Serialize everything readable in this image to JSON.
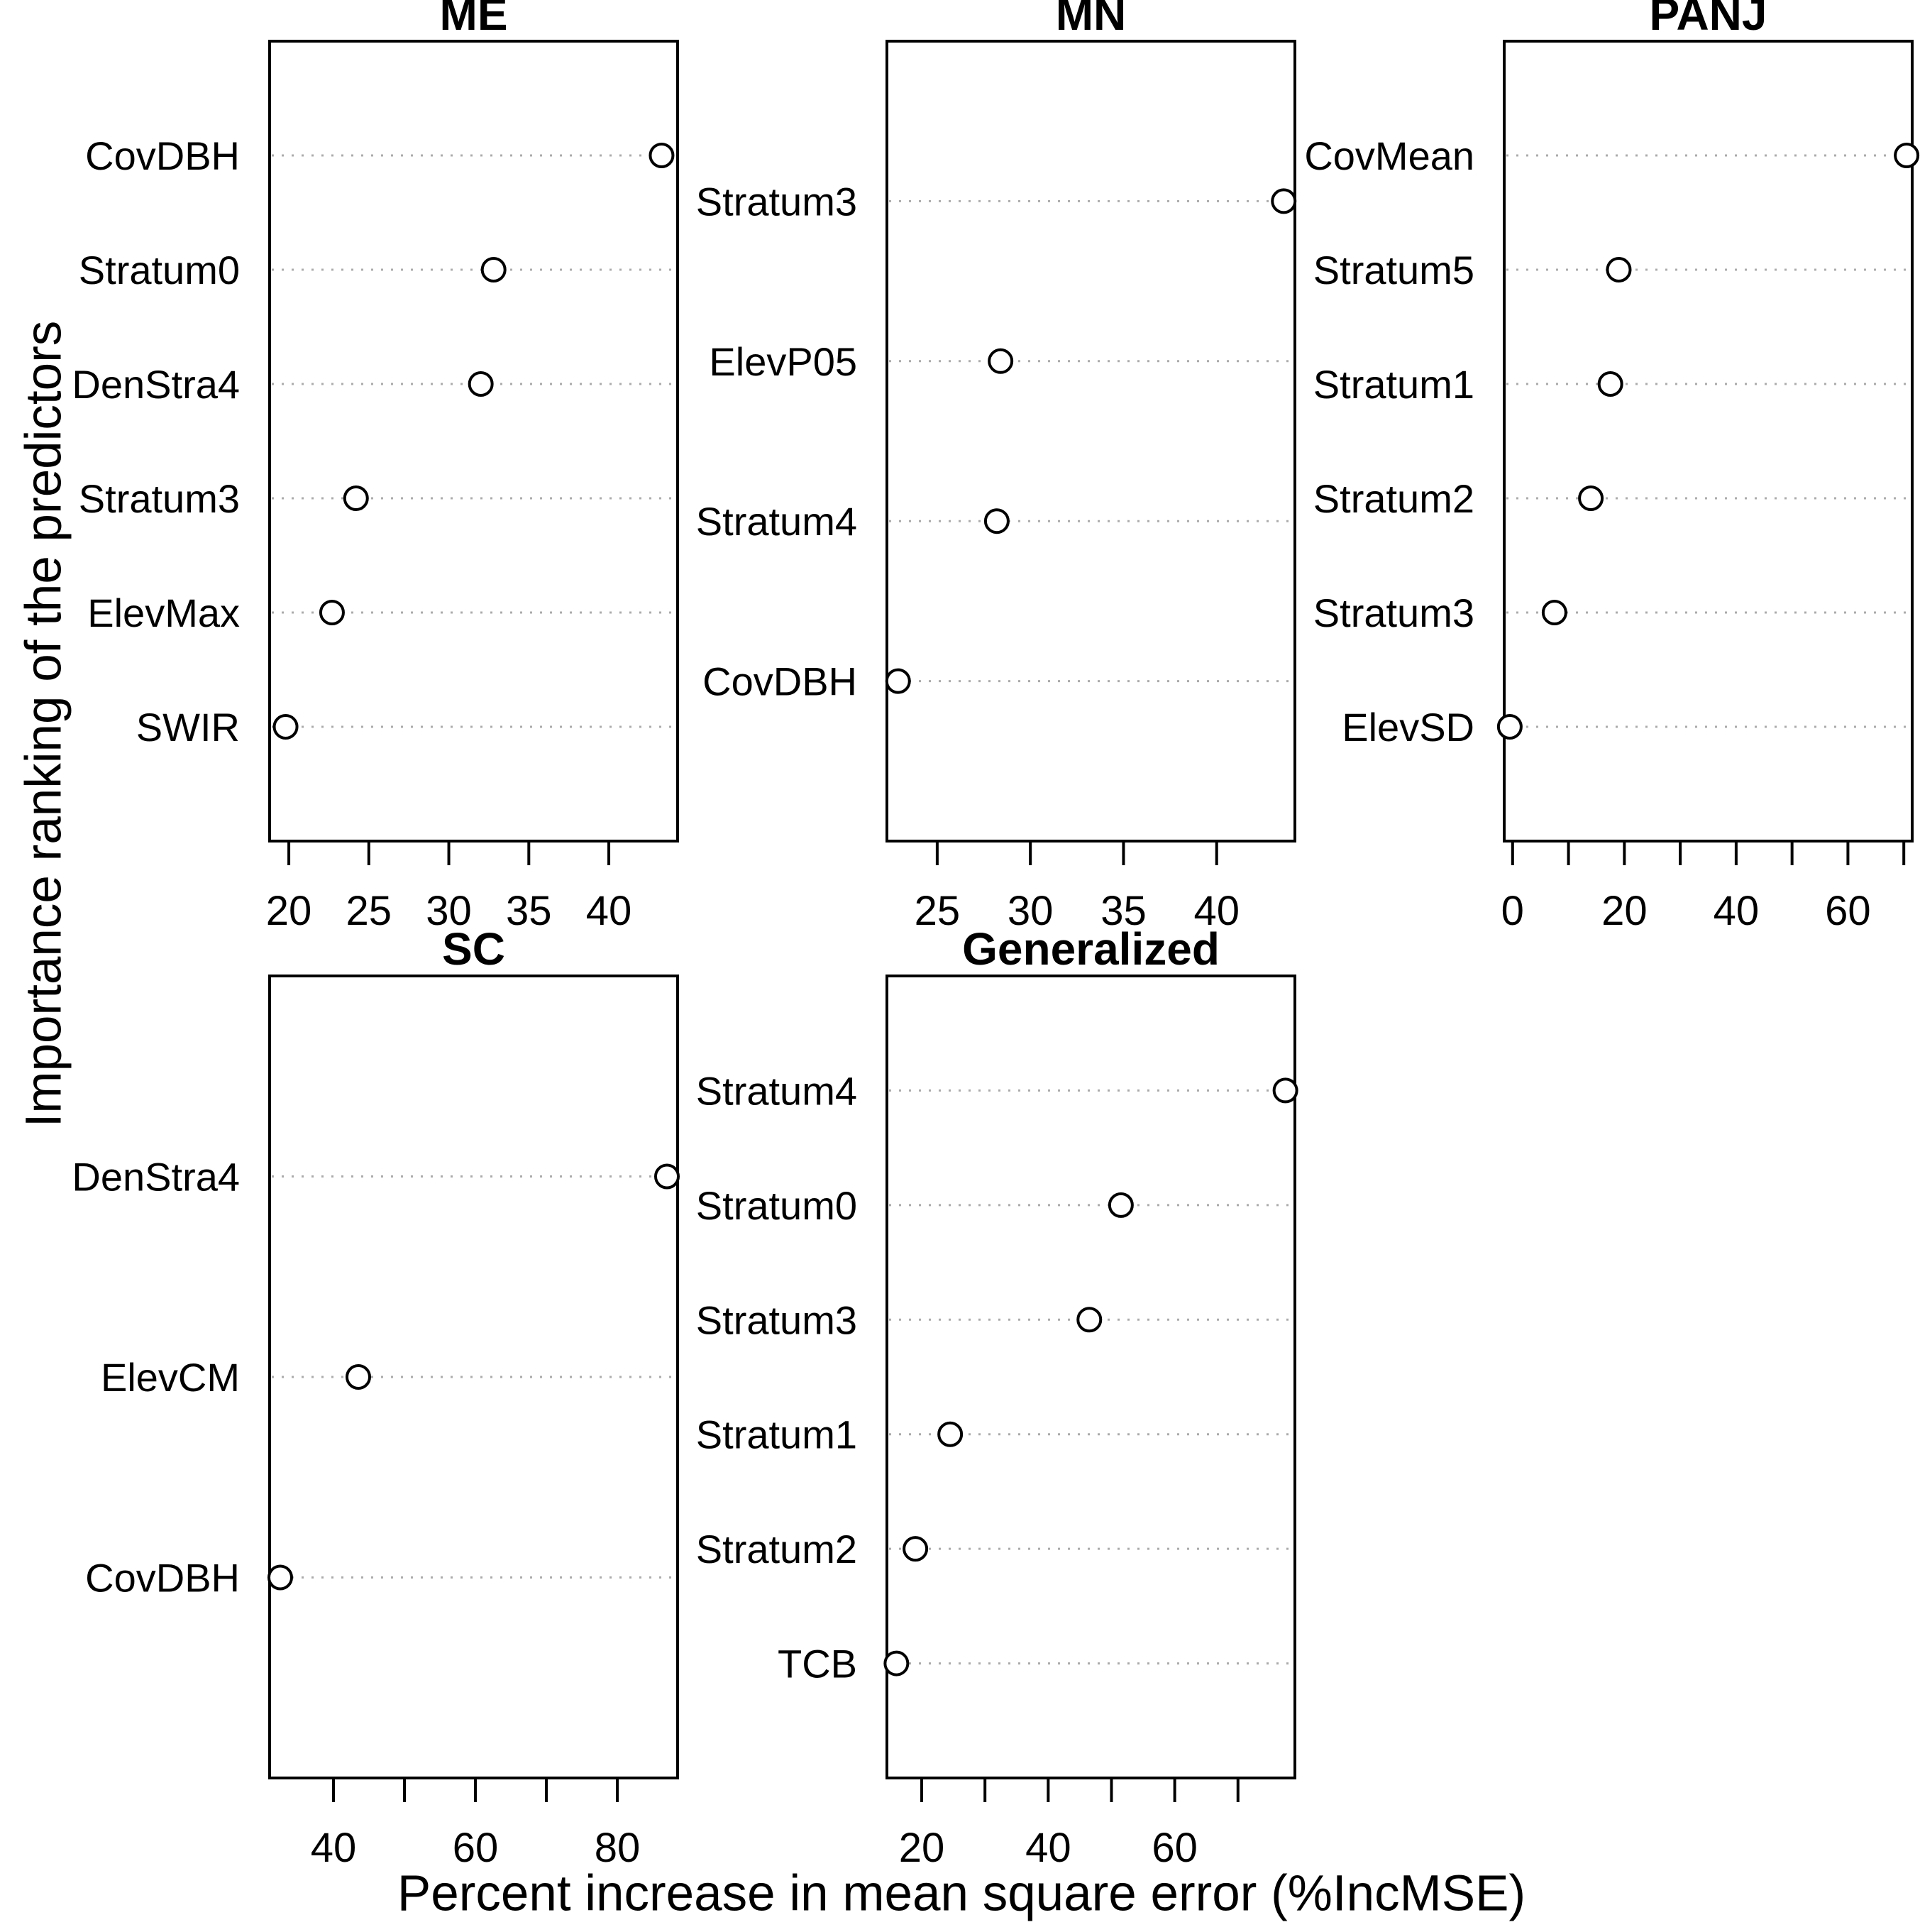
{
  "figure": {
    "background_color": "#ffffff",
    "foreground_color": "#000000",
    "gridline_color": "#ababab"
  },
  "chart_data": {
    "type": "scatter",
    "subtype": "dotchart-multipanel",
    "title": "",
    "xlabel": "Percent increase in mean square error (%IncMSE)",
    "ylabel": "Importance ranking of the predictors",
    "legend": "none",
    "grid": "horizontal dotted line per category",
    "marker": "open-circle",
    "panels": [
      {
        "title": "ME",
        "categories": [
          "CovDBH",
          "Stratum0",
          "DenStra4",
          "Stratum3",
          "ElevMax",
          "SWIR"
        ],
        "values": [
          43.3,
          32.8,
          32.0,
          24.2,
          22.7,
          19.8
        ],
        "xlim": [
          18.8,
          44.3
        ],
        "tick_values": [
          20,
          25,
          30,
          35,
          40
        ],
        "tick_labels": [
          "20",
          "25",
          "30",
          "35",
          "40"
        ],
        "row": 0,
        "col": 0
      },
      {
        "title": "MN",
        "categories": [
          "Stratum3",
          "ElevP05",
          "Stratum4",
          "CovDBH"
        ],
        "values": [
          43.6,
          28.4,
          28.2,
          22.9
        ],
        "xlim": [
          22.3,
          44.2
        ],
        "tick_values": [
          25,
          30,
          35,
          40
        ],
        "tick_labels": [
          "25",
          "30",
          "35",
          "40"
        ],
        "row": 0,
        "col": 1
      },
      {
        "title": "PANJ",
        "categories": [
          "CovMean",
          "Stratum5",
          "Stratum1",
          "Stratum2",
          "Stratum3",
          "ElevSD"
        ],
        "values": [
          70.5,
          19.0,
          17.5,
          14.0,
          7.5,
          -0.5
        ],
        "xlim": [
          -1.5,
          71.5
        ],
        "tick_values": [
          0,
          10,
          20,
          30,
          40,
          50,
          60,
          70
        ],
        "tick_labels": [
          "0",
          "",
          "20",
          "",
          "40",
          "",
          "60",
          ""
        ],
        "row": 0,
        "col": 2
      },
      {
        "title": "SC",
        "categories": [
          "DenStra4",
          "ElevCM",
          "CovDBH"
        ],
        "values": [
          87.0,
          43.5,
          32.5
        ],
        "xlim": [
          31.0,
          88.5
        ],
        "tick_values": [
          40,
          50,
          60,
          70,
          80
        ],
        "tick_labels": [
          "40",
          "",
          "60",
          "",
          "80"
        ],
        "row": 1,
        "col": 0
      },
      {
        "title": "Generalized",
        "categories": [
          "Stratum4",
          "Stratum0",
          "Stratum3",
          "Stratum1",
          "Stratum2",
          "TCB"
        ],
        "values": [
          77.5,
          51.5,
          46.5,
          24.5,
          19.0,
          16.0
        ],
        "xlim": [
          14.5,
          79.0
        ],
        "tick_values": [
          20,
          30,
          40,
          50,
          60,
          70
        ],
        "tick_labels": [
          "20",
          "",
          "40",
          "",
          "60",
          ""
        ],
        "row": 1,
        "col": 1
      }
    ]
  }
}
